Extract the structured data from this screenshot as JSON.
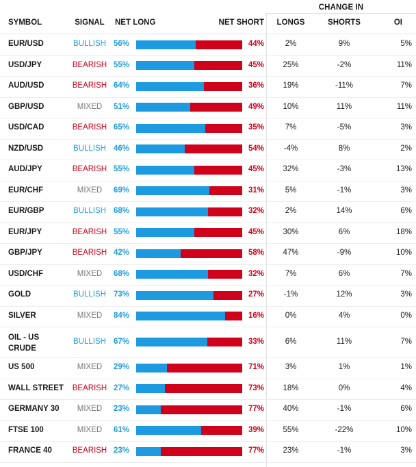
{
  "headers": {
    "change_in": "CHANGE IN",
    "symbol": "SYMBOL",
    "signal": "SIGNAL",
    "net_long": "NET LONG",
    "net_short": "NET SHORT",
    "longs": "LONGS",
    "shorts": "SHORTS",
    "oi": "OI"
  },
  "colors": {
    "long": "#1e9be0",
    "short": "#d0021b",
    "mixed": "#777777"
  },
  "rows": [
    {
      "symbol": "EUR/USD",
      "signal": "BULLISH",
      "net_long": "56%",
      "net_long_value": 56,
      "net_short": "44%",
      "longs": "2%",
      "shorts": "9%",
      "oi": "5%"
    },
    {
      "symbol": "USD/JPY",
      "signal": "BEARISH",
      "net_long": "55%",
      "net_long_value": 55,
      "net_short": "45%",
      "longs": "25%",
      "shorts": "-2%",
      "oi": "11%"
    },
    {
      "symbol": "AUD/USD",
      "signal": "BEARISH",
      "net_long": "64%",
      "net_long_value": 64,
      "net_short": "36%",
      "longs": "19%",
      "shorts": "-11%",
      "oi": "7%"
    },
    {
      "symbol": "GBP/USD",
      "signal": "MIXED",
      "net_long": "51%",
      "net_long_value": 51,
      "net_short": "49%",
      "longs": "10%",
      "shorts": "11%",
      "oi": "11%"
    },
    {
      "symbol": "USD/CAD",
      "signal": "BEARISH",
      "net_long": "65%",
      "net_long_value": 65,
      "net_short": "35%",
      "longs": "7%",
      "shorts": "-5%",
      "oi": "3%"
    },
    {
      "symbol": "NZD/USD",
      "signal": "BULLISH",
      "net_long": "46%",
      "net_long_value": 46,
      "net_short": "54%",
      "longs": "-4%",
      "shorts": "8%",
      "oi": "2%"
    },
    {
      "symbol": "AUD/JPY",
      "signal": "BEARISH",
      "net_long": "55%",
      "net_long_value": 55,
      "net_short": "45%",
      "longs": "32%",
      "shorts": "-3%",
      "oi": "13%"
    },
    {
      "symbol": "EUR/CHF",
      "signal": "MIXED",
      "net_long": "69%",
      "net_long_value": 69,
      "net_short": "31%",
      "longs": "5%",
      "shorts": "-1%",
      "oi": "3%"
    },
    {
      "symbol": "EUR/GBP",
      "signal": "BULLISH",
      "net_long": "68%",
      "net_long_value": 68,
      "net_short": "32%",
      "longs": "2%",
      "shorts": "14%",
      "oi": "6%"
    },
    {
      "symbol": "EUR/JPY",
      "signal": "BEARISH",
      "net_long": "55%",
      "net_long_value": 55,
      "net_short": "45%",
      "longs": "30%",
      "shorts": "6%",
      "oi": "18%"
    },
    {
      "symbol": "GBP/JPY",
      "signal": "BEARISH",
      "net_long": "42%",
      "net_long_value": 42,
      "net_short": "58%",
      "longs": "47%",
      "shorts": "-9%",
      "oi": "10%"
    },
    {
      "symbol": "USD/CHF",
      "signal": "MIXED",
      "net_long": "68%",
      "net_long_value": 68,
      "net_short": "32%",
      "longs": "7%",
      "shorts": "6%",
      "oi": "7%"
    },
    {
      "symbol": "GOLD",
      "signal": "BULLISH",
      "net_long": "73%",
      "net_long_value": 73,
      "net_short": "27%",
      "longs": "-1%",
      "shorts": "12%",
      "oi": "3%"
    },
    {
      "symbol": "SILVER",
      "signal": "MIXED",
      "net_long": "84%",
      "net_long_value": 84,
      "net_short": "16%",
      "longs": "0%",
      "shorts": "4%",
      "oi": "0%"
    },
    {
      "symbol": "OIL - US CRUDE",
      "signal": "BULLISH",
      "net_long": "67%",
      "net_long_value": 67,
      "net_short": "33%",
      "longs": "6%",
      "shorts": "11%",
      "oi": "7%"
    },
    {
      "symbol": "US 500",
      "signal": "MIXED",
      "net_long": "29%",
      "net_long_value": 29,
      "net_short": "71%",
      "longs": "3%",
      "shorts": "1%",
      "oi": "1%"
    },
    {
      "symbol": "WALL STREET",
      "signal": "BEARISH",
      "net_long": "27%",
      "net_long_value": 27,
      "net_short": "73%",
      "longs": "18%",
      "shorts": "0%",
      "oi": "4%"
    },
    {
      "symbol": "GERMANY 30",
      "signal": "MIXED",
      "net_long": "23%",
      "net_long_value": 23,
      "net_short": "77%",
      "longs": "40%",
      "shorts": "-1%",
      "oi": "6%"
    },
    {
      "symbol": "FTSE 100",
      "signal": "MIXED",
      "net_long": "61%",
      "net_long_value": 61,
      "net_short": "39%",
      "longs": "55%",
      "shorts": "-22%",
      "oi": "10%"
    },
    {
      "symbol": "FRANCE 40",
      "signal": "BEARISH",
      "net_long": "23%",
      "net_long_value": 23,
      "net_short": "77%",
      "longs": "23%",
      "shorts": "-1%",
      "oi": "3%"
    }
  ]
}
